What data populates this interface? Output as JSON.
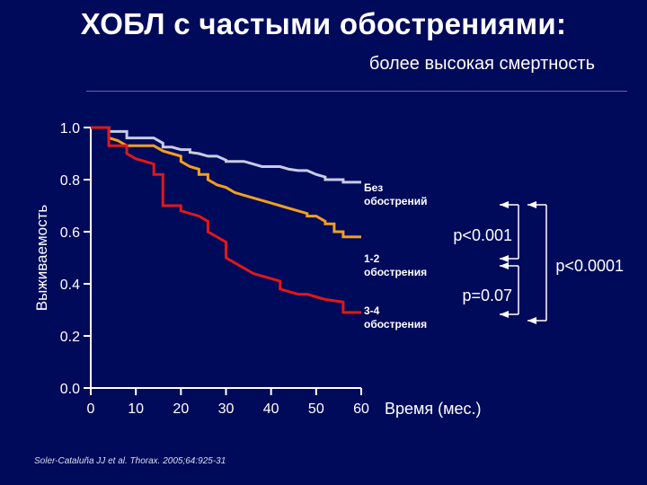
{
  "header": {
    "title": "ХОБЛ с частыми обострениями:",
    "subtitle": "более высокая смертность"
  },
  "citation": "Soler-Cataluña JJ et al. Thorax. 2005;64:925-31",
  "colors": {
    "background": "#000a5a",
    "axis": "#ffffff",
    "no_exac": "#c8cce4",
    "exac_1_2": "#f0a020",
    "exac_3_4": "#e01818",
    "bracket": "#ffffff"
  },
  "chart_data": {
    "type": "line",
    "title": "",
    "xlabel": "Время (мес.)",
    "ylabel": "Выживаемость",
    "xlim": [
      0,
      60
    ],
    "ylim": [
      0.0,
      1.0
    ],
    "xticks": [
      0,
      10,
      20,
      30,
      40,
      50,
      60
    ],
    "yticks": [
      "0.0",
      "0.2",
      "0.4",
      "0.6",
      "0.8",
      "1.0"
    ],
    "ytick_values": [
      0.0,
      0.2,
      0.4,
      0.6,
      0.8,
      1.0
    ],
    "grid": false,
    "series": [
      {
        "name": "Без обострений",
        "label_lines": [
          "Без",
          "обострений"
        ],
        "color": "#c8cce4",
        "x": [
          0,
          4,
          4,
          8,
          8,
          14,
          16,
          16,
          18,
          20,
          22,
          22,
          24,
          26,
          28,
          30,
          30,
          34,
          36,
          38,
          40,
          42,
          44,
          46,
          48,
          50,
          52,
          52,
          56,
          56,
          60
        ],
        "y": [
          1.0,
          1.0,
          0.985,
          0.985,
          0.96,
          0.96,
          0.94,
          0.925,
          0.925,
          0.915,
          0.915,
          0.905,
          0.9,
          0.89,
          0.89,
          0.875,
          0.87,
          0.87,
          0.86,
          0.85,
          0.85,
          0.85,
          0.84,
          0.835,
          0.835,
          0.82,
          0.81,
          0.8,
          0.8,
          0.79,
          0.79
        ]
      },
      {
        "name": "1-2 обострения",
        "label_lines": [
          "1-2",
          "обострения"
        ],
        "color": "#f0a020",
        "x": [
          0,
          4,
          4,
          6,
          8,
          14,
          16,
          18,
          20,
          20,
          22,
          24,
          24,
          26,
          26,
          28,
          30,
          32,
          34,
          36,
          38,
          40,
          42,
          44,
          46,
          48,
          48,
          50,
          52,
          52,
          54,
          54,
          56,
          56,
          60
        ],
        "y": [
          1.0,
          1.0,
          0.96,
          0.95,
          0.93,
          0.93,
          0.91,
          0.9,
          0.89,
          0.87,
          0.85,
          0.84,
          0.82,
          0.82,
          0.8,
          0.78,
          0.77,
          0.75,
          0.74,
          0.73,
          0.72,
          0.71,
          0.7,
          0.69,
          0.68,
          0.67,
          0.66,
          0.66,
          0.64,
          0.63,
          0.63,
          0.6,
          0.6,
          0.58,
          0.58
        ]
      },
      {
        "name": "3-4 обострения",
        "label_lines": [
          "3-4",
          "обострения"
        ],
        "color": "#e01818",
        "x": [
          0,
          4,
          4,
          8,
          8,
          10,
          12,
          14,
          14,
          16,
          16,
          20,
          20,
          24,
          26,
          26,
          28,
          30,
          30,
          32,
          34,
          36,
          38,
          40,
          42,
          42,
          44,
          46,
          48,
          50,
          52,
          56,
          56,
          60
        ],
        "y": [
          1.0,
          1.0,
          0.93,
          0.93,
          0.9,
          0.88,
          0.87,
          0.86,
          0.82,
          0.82,
          0.7,
          0.7,
          0.68,
          0.66,
          0.64,
          0.6,
          0.58,
          0.56,
          0.5,
          0.48,
          0.46,
          0.44,
          0.43,
          0.42,
          0.41,
          0.38,
          0.37,
          0.36,
          0.36,
          0.35,
          0.34,
          0.33,
          0.29,
          0.29
        ]
      }
    ],
    "annotations": [
      {
        "id": "p1",
        "text": "p<0.001"
      },
      {
        "id": "p2",
        "text": "p<0.0001"
      },
      {
        "id": "p3",
        "text": "p=0.07"
      }
    ]
  }
}
